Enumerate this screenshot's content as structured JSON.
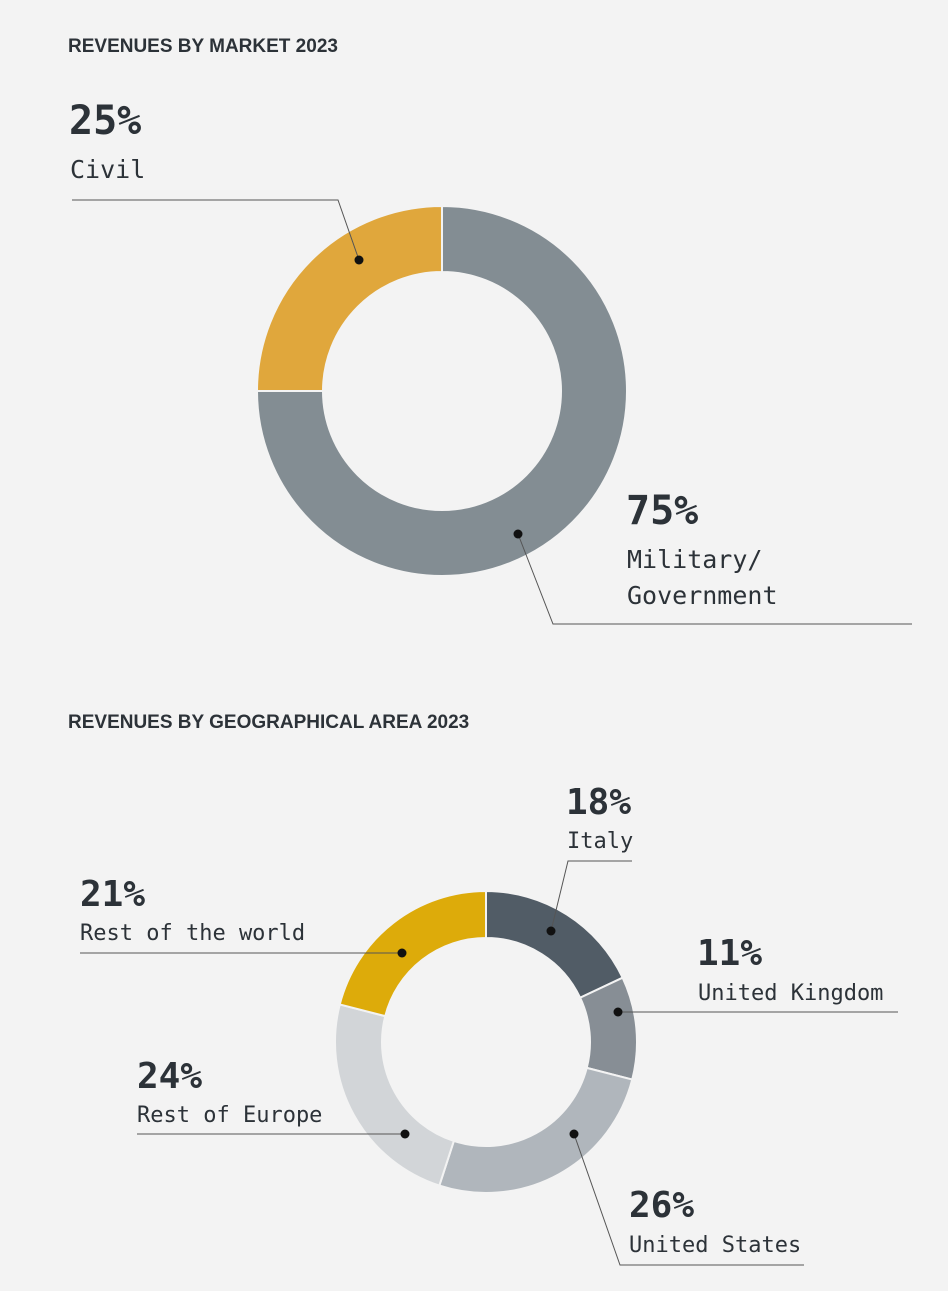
{
  "chart_data": [
    {
      "type": "pie",
      "title": "REVENUES BY MARKET 2023",
      "categories": [
        "Civil",
        "Military/ Government"
      ],
      "values": [
        25,
        75
      ],
      "value_labels": [
        "25%",
        "75%"
      ],
      "colors": [
        "#e0a73c",
        "#838d93"
      ]
    },
    {
      "type": "pie",
      "title": "REVENUES BY GEOGRAPHICAL AREA 2023",
      "categories": [
        "Italy",
        "United Kingdom",
        "United States",
        "Rest of Europe",
        "Rest of the world"
      ],
      "values": [
        18,
        11,
        26,
        24,
        21
      ],
      "value_labels": [
        "18%",
        "11%",
        "26%",
        "24%",
        "21%"
      ],
      "colors": [
        "#515c66",
        "#878e95",
        "#b0b6bc",
        "#d2d5d8",
        "#ddab0a"
      ]
    }
  ],
  "labels": {
    "market": {
      "civil_label": "Civil",
      "military_line1": "Military/",
      "military_line2": "Government"
    }
  }
}
